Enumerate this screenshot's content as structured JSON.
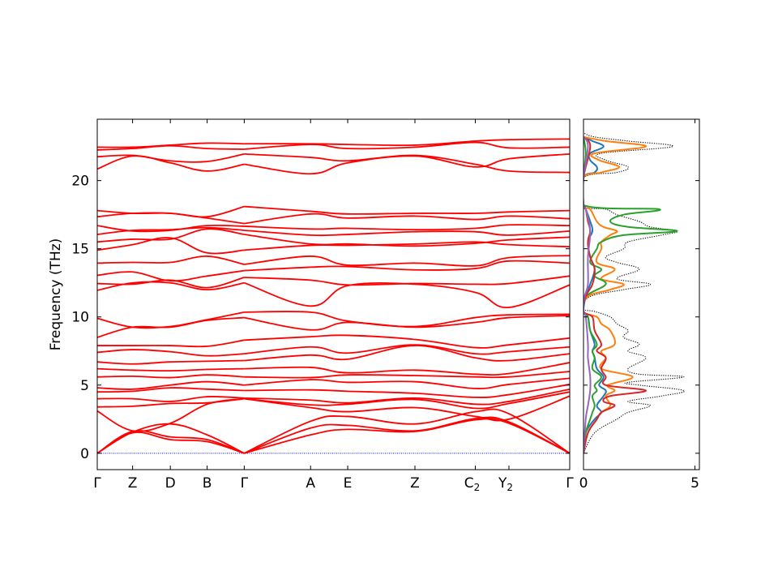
{
  "chart_data": [
    {
      "type": "line",
      "title": "",
      "ylabel": "Frequency (THz)",
      "xlabel": "",
      "ylim": [
        -1.2,
        24.5
      ],
      "yticks": [
        0,
        5,
        10,
        15,
        20
      ],
      "x_tick_labels": [
        {
          "main": "Γ",
          "sub": ""
        },
        {
          "main": "Z",
          "sub": ""
        },
        {
          "main": "D",
          "sub": ""
        },
        {
          "main": "B",
          "sub": ""
        },
        {
          "main": "Γ",
          "sub": ""
        },
        {
          "main": "A",
          "sub": ""
        },
        {
          "main": "E",
          "sub": ""
        },
        {
          "main": "Z",
          "sub": ""
        },
        {
          "main": "C",
          "sub": "2"
        },
        {
          "main": "Y",
          "sub": "2"
        },
        {
          "main": "Γ",
          "sub": ""
        }
      ],
      "path_positions": [
        0,
        0.0748,
        0.1547,
        0.2326,
        0.3111,
        0.4515,
        0.5301,
        0.6724,
        0.8002,
        0.8713,
        1.0
      ],
      "break_after_index": 4,
      "line_color": "#ff0000",
      "zero_line_color": "#0000ff",
      "series": [
        {
          "values": [
            0.0,
            1.55,
            2.15,
            1.35,
            0.0,
            2.35,
            2.7,
            2.15,
            3.05,
            2.9,
            0.0
          ]
        },
        {
          "values": [
            0.0,
            1.6,
            1.2,
            1.0,
            0.0,
            1.85,
            2.05,
            1.65,
            2.55,
            2.3,
            0.0
          ]
        },
        {
          "values": [
            0.0,
            1.5,
            1.0,
            0.85,
            0.0,
            1.35,
            1.75,
            1.6,
            2.45,
            2.2,
            0.0
          ]
        },
        {
          "values": [
            3.1,
            1.65,
            2.2,
            3.6,
            4.0,
            3.35,
            3.05,
            3.35,
            2.7,
            2.5,
            4.2
          ]
        },
        {
          "values": [
            3.4,
            3.45,
            3.65,
            3.7,
            4.0,
            3.55,
            3.6,
            3.95,
            3.3,
            3.65,
            4.5
          ]
        },
        {
          "values": [
            4.0,
            4.0,
            3.8,
            4.15,
            4.05,
            3.9,
            3.7,
            4.05,
            3.6,
            3.8,
            4.7
          ]
        },
        {
          "values": [
            4.5,
            4.55,
            4.8,
            4.7,
            4.6,
            4.65,
            4.55,
            4.4,
            4.1,
            4.3,
            5.05
          ]
        },
        {
          "values": [
            4.8,
            4.7,
            5.0,
            5.25,
            5.0,
            5.4,
            5.2,
            5.25,
            4.75,
            5.05,
            5.5
          ]
        },
        {
          "values": [
            5.6,
            5.65,
            5.55,
            5.75,
            5.6,
            5.55,
            5.75,
            5.7,
            5.6,
            5.6,
            6.0
          ]
        },
        {
          "values": [
            6.2,
            6.1,
            6.05,
            6.15,
            6.2,
            6.3,
            5.9,
            6.1,
            5.8,
            5.85,
            6.65
          ]
        },
        {
          "values": [
            6.7,
            6.55,
            6.7,
            6.75,
            6.8,
            7.2,
            6.9,
            7.9,
            7.0,
            6.8,
            7.3
          ]
        },
        {
          "values": [
            7.4,
            7.6,
            7.45,
            7.15,
            7.3,
            7.8,
            7.35,
            7.95,
            7.3,
            7.45,
            7.8
          ]
        },
        {
          "values": [
            7.9,
            7.9,
            7.9,
            7.85,
            8.3,
            8.55,
            8.65,
            8.35,
            7.75,
            7.95,
            8.45
          ]
        },
        {
          "values": [
            8.5,
            9.25,
            9.25,
            9.75,
            9.95,
            9.05,
            9.6,
            9.25,
            9.6,
            9.95,
            10.1
          ]
        },
        {
          "values": [
            9.9,
            9.25,
            9.3,
            9.8,
            10.35,
            10.35,
            9.7,
            9.3,
            9.95,
            10.15,
            10.2
          ]
        },
        {
          "values": [
            11.95,
            12.5,
            12.5,
            12.0,
            12.5,
            10.8,
            12.3,
            12.4,
            11.8,
            10.7,
            12.35
          ]
        },
        {
          "values": [
            12.45,
            12.4,
            12.7,
            12.15,
            12.9,
            12.7,
            12.35,
            12.45,
            12.4,
            12.45,
            13.0
          ]
        },
        {
          "values": [
            13.05,
            13.3,
            12.65,
            13.0,
            13.4,
            13.65,
            13.7,
            13.45,
            13.55,
            14.1,
            13.95
          ]
        },
        {
          "values": [
            13.95,
            14.0,
            14.0,
            14.45,
            13.85,
            14.45,
            13.8,
            13.95,
            13.75,
            14.35,
            14.5
          ]
        },
        {
          "values": [
            14.9,
            15.3,
            15.8,
            14.7,
            14.9,
            15.25,
            15.25,
            15.35,
            15.5,
            15.3,
            15.15
          ]
        },
        {
          "values": [
            15.5,
            15.7,
            15.7,
            16.45,
            16.05,
            15.35,
            15.35,
            15.2,
            15.4,
            15.65,
            15.85
          ]
        },
        {
          "values": [
            16.05,
            16.35,
            16.4,
            16.55,
            16.35,
            16.0,
            16.05,
            16.25,
            16.25,
            16.0,
            16.3
          ]
        },
        {
          "values": [
            16.7,
            16.3,
            16.35,
            16.7,
            16.65,
            16.45,
            16.5,
            16.4,
            16.5,
            16.75,
            16.7
          ]
        },
        {
          "values": [
            17.35,
            17.6,
            17.6,
            17.25,
            16.85,
            17.55,
            17.25,
            17.4,
            17.15,
            17.4,
            17.2
          ]
        },
        {
          "values": [
            17.8,
            17.6,
            17.6,
            17.35,
            18.1,
            17.75,
            17.55,
            17.6,
            17.6,
            17.7,
            17.8
          ]
        },
        {
          "values": [
            20.85,
            21.8,
            21.3,
            20.7,
            21.2,
            20.5,
            21.3,
            21.8,
            21.0,
            21.6,
            21.95
          ]
        },
        {
          "values": [
            21.75,
            21.85,
            21.45,
            21.4,
            21.95,
            21.7,
            21.45,
            21.85,
            21.2,
            20.7,
            20.6
          ]
        },
        {
          "values": [
            22.25,
            22.35,
            22.55,
            22.35,
            22.3,
            22.65,
            22.35,
            22.45,
            22.8,
            22.4,
            22.45
          ]
        },
        {
          "values": [
            22.45,
            22.45,
            22.6,
            22.75,
            22.7,
            22.7,
            22.65,
            22.6,
            22.9,
            23.0,
            23.05
          ]
        }
      ]
    },
    {
      "type": "line",
      "title": "",
      "xlabel": "",
      "ylabel": "",
      "xlim": [
        0,
        5.2
      ],
      "xticks": [
        0,
        5
      ],
      "ylim": [
        -1.2,
        24.5
      ],
      "total_color": "#000000",
      "series": [
        {
          "color": "#000000",
          "style": "dotted",
          "freq": [
            0,
            1.5,
            2.5,
            3.0,
            3.5,
            3.8,
            4.2,
            4.6,
            5.0,
            5.2,
            5.6,
            5.8,
            6.2,
            7.0,
            7.5,
            8.0,
            8.5,
            9.0,
            9.5,
            10.0,
            10.4,
            10.6,
            11.5,
            12.0,
            12.4,
            12.8,
            13.5,
            14.0,
            14.4,
            15.0,
            15.5,
            16.0,
            16.3,
            16.6,
            17.0,
            17.5,
            17.9,
            18.2,
            20.2,
            20.6,
            21.0,
            21.5,
            22.0,
            22.5,
            22.9,
            23.2,
            23.5
          ],
          "dos": [
            0,
            0.5,
            1.5,
            2.0,
            3.0,
            2.0,
            3.5,
            4.5,
            2.5,
            2.0,
            4.5,
            2.5,
            2.0,
            2.8,
            2.0,
            2.5,
            1.8,
            2.0,
            1.5,
            1.2,
            0.5,
            0,
            0.3,
            1.8,
            3.0,
            1.5,
            2.5,
            1.5,
            1.0,
            1.8,
            2.0,
            3.5,
            4.2,
            3.0,
            2.5,
            1.5,
            1.0,
            0,
            0,
            1.5,
            2.0,
            1.0,
            0.8,
            4.0,
            2.0,
            0.5,
            0
          ]
        },
        {
          "color": "#1f77b4",
          "style": "solid",
          "freq": [
            0,
            1.5,
            2.5,
            3.0,
            3.5,
            4.2,
            4.6,
            5.0,
            5.6,
            6.2,
            7.0,
            7.5,
            8.0,
            9.0,
            10.0,
            10.4,
            11.5,
            12.4,
            13.5,
            14.4,
            15.5,
            16.3,
            17.0,
            17.9,
            18.2,
            20.2,
            20.6,
            21.0,
            21.5,
            22.0,
            22.5,
            22.9,
            23.2
          ],
          "dos": [
            0,
            0.1,
            0.5,
            0.8,
            0.6,
            0.9,
            1.0,
            0.7,
            0.9,
            0.6,
            0.5,
            0.4,
            0.5,
            0.3,
            0.2,
            0,
            0.1,
            0.3,
            0.5,
            0.3,
            0.2,
            0.4,
            0.3,
            0.1,
            0,
            0,
            0.5,
            0.6,
            0.3,
            0.3,
            0.9,
            0.4,
            0
          ]
        },
        {
          "color": "#ff7f0e",
          "style": "solid",
          "freq": [
            0,
            1.5,
            2.5,
            3.0,
            3.5,
            4.2,
            4.6,
            5.0,
            5.6,
            6.2,
            7.0,
            7.5,
            8.0,
            9.0,
            9.5,
            10.0,
            10.4,
            11.5,
            12.0,
            12.4,
            12.8,
            13.5,
            14.0,
            15.0,
            15.5,
            16.0,
            16.3,
            16.6,
            17.0,
            17.9,
            18.2,
            20.2,
            20.6,
            21.0,
            21.5,
            22.0,
            22.5,
            22.9,
            23.2
          ],
          "dos": [
            0,
            0.2,
            0.6,
            0.8,
            1.2,
            1.0,
            1.4,
            1.1,
            2.2,
            0.8,
            1.0,
            0.8,
            1.4,
            1.2,
            0.8,
            0.6,
            0,
            0.2,
            1.2,
            1.8,
            0.8,
            1.4,
            0.6,
            0.8,
            0.8,
            1.2,
            1.5,
            0.9,
            0.6,
            0.3,
            0,
            0,
            0.8,
            1.6,
            0.7,
            0.5,
            2.8,
            1.0,
            0
          ]
        },
        {
          "color": "#2ca02c",
          "style": "solid",
          "freq": [
            0,
            1.5,
            2.5,
            3.0,
            3.5,
            4.2,
            4.6,
            5.0,
            5.6,
            6.2,
            7.0,
            7.5,
            8.0,
            9.0,
            10.0,
            10.4,
            11.5,
            12.4,
            13.0,
            13.5,
            14.0,
            15.0,
            15.5,
            16.0,
            16.3,
            16.6,
            17.0,
            17.5,
            17.9,
            18.2,
            20.2,
            22.0,
            23.2
          ],
          "dos": [
            0,
            0.1,
            0.3,
            0.4,
            0.5,
            0.4,
            0.6,
            0.5,
            0.8,
            0.4,
            0.5,
            0.4,
            0.6,
            0.3,
            0.2,
            0,
            0.1,
            1.0,
            0.5,
            0.8,
            0.3,
            0.6,
            0.8,
            1.8,
            4.2,
            2.0,
            1.2,
            1.8,
            3.4,
            0,
            0,
            0.1,
            0
          ]
        },
        {
          "color": "#d62728",
          "style": "solid",
          "freq": [
            0,
            1.5,
            2.5,
            3.0,
            3.5,
            3.8,
            4.2,
            4.6,
            5.0,
            5.6,
            6.2,
            7.0,
            7.5,
            8.0,
            9.0,
            10.0,
            10.4,
            11.5,
            12.4,
            13.5,
            14.4,
            15.5,
            16.3,
            17.0,
            17.9,
            18.2,
            20.2,
            22.5,
            23.2
          ],
          "dos": [
            0,
            0.2,
            0.6,
            0.8,
            1.4,
            0.9,
            1.2,
            2.8,
            1.0,
            1.0,
            0.8,
            1.0,
            0.6,
            0.8,
            0.5,
            0.4,
            0,
            0.1,
            0.4,
            0.5,
            0.3,
            0.2,
            0.3,
            0.2,
            0.1,
            0,
            0,
            0.3,
            0
          ]
        },
        {
          "color": "#9467bd",
          "style": "solid",
          "freq": [
            0,
            2.5,
            3.5,
            4.6,
            5.6,
            7.0,
            8.0,
            10.0,
            10.4,
            11.5,
            12.4,
            14.4,
            16.3,
            17.9,
            18.2,
            20.2,
            22.5,
            23.2
          ],
          "dos": [
            0,
            0.1,
            0.2,
            0.3,
            0.3,
            0.2,
            0.2,
            0.1,
            0,
            0.05,
            0.2,
            0.2,
            0.3,
            0.1,
            0,
            0,
            0.2,
            0
          ]
        }
      ]
    }
  ]
}
